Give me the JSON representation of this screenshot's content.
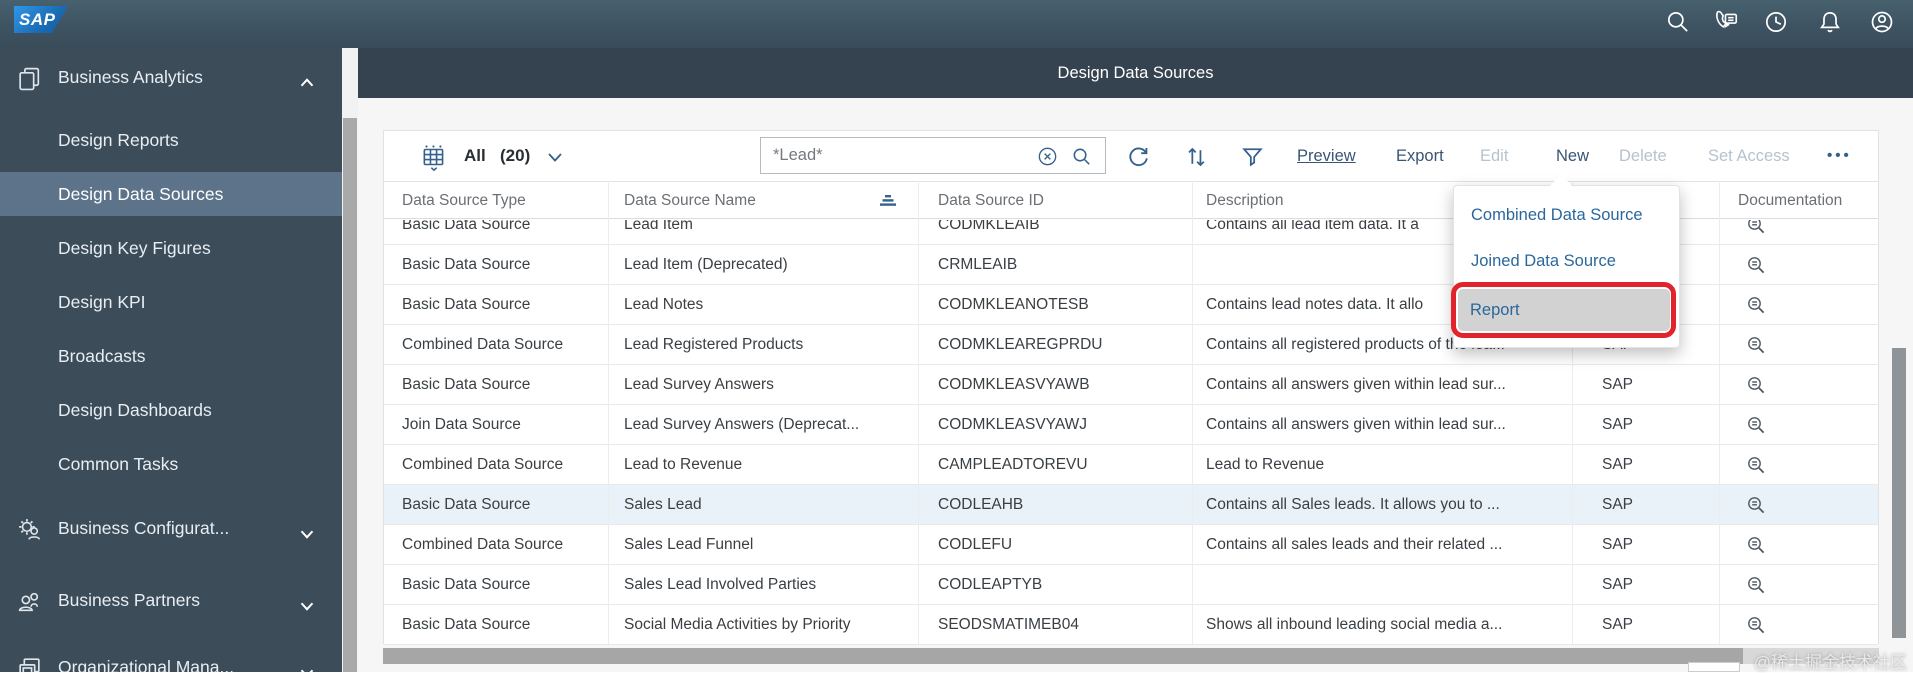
{
  "topbar": {
    "logo": "SAP",
    "icons": [
      "search-icon",
      "call-chat-icon",
      "history-icon",
      "notifications-icon",
      "profile-icon"
    ]
  },
  "sidebar": {
    "sections": [
      {
        "label": "Business Analytics",
        "icon": "copy-pages-icon",
        "expanded": true,
        "items": [
          {
            "label": "Design Reports"
          },
          {
            "label": "Design Data Sources",
            "selected": true
          },
          {
            "label": "Design Key Figures"
          },
          {
            "label": "Design KPI"
          },
          {
            "label": "Broadcasts"
          },
          {
            "label": "Design Dashboards"
          },
          {
            "label": "Common Tasks"
          }
        ]
      },
      {
        "label": "Business Configurat...",
        "icon": "gear-person-icon",
        "expanded": false
      },
      {
        "label": "Business Partners",
        "icon": "people-icon",
        "expanded": false
      },
      {
        "label": "Organizational Mana...",
        "icon": "org-windows-icon",
        "expanded": false
      }
    ]
  },
  "header": {
    "title": "Design Data Sources"
  },
  "toolbar": {
    "view_label": "All",
    "view_count": "(20)",
    "search_value": "*Lead*",
    "icons": [
      "table-view-icon",
      "chevron-down-icon",
      "clear-icon",
      "search-icon",
      "refresh-icon",
      "sort-icon",
      "filter-icon",
      "overflow-dots-icon"
    ],
    "actions": [
      {
        "label": "Preview",
        "enabled": true,
        "underlined": true
      },
      {
        "label": "Export",
        "enabled": true
      },
      {
        "label": "Edit",
        "enabled": false
      },
      {
        "label": "New",
        "enabled": true,
        "menu_open": true
      },
      {
        "label": "Delete",
        "enabled": false
      },
      {
        "label": "Set Access",
        "enabled": false
      }
    ],
    "overflow": "•••"
  },
  "table": {
    "columns": [
      "Data Source Type",
      "Data Source Name",
      "Data Source ID",
      "Description",
      "",
      "Documentation"
    ],
    "sort": {
      "column": "Data Source Name",
      "direction": "ascending"
    },
    "rows": [
      {
        "type": "Basic Data Source",
        "name": "Lead Item",
        "id": "CODMKLEAIB",
        "description": "Contains all lead item data. It a",
        "owner": ""
      },
      {
        "type": "Basic Data Source",
        "name": "Lead Item (Deprecated)",
        "id": "CRMLEAIB",
        "description": "",
        "owner": ""
      },
      {
        "type": "Basic Data Source",
        "name": "Lead Notes",
        "id": "CODMKLEANOTESB",
        "description": "Contains lead notes data. It allo",
        "owner": ""
      },
      {
        "type": "Combined Data Source",
        "name": "Lead Registered Products",
        "id": "CODMKLEAREGPRDU",
        "description": "Contains all registered products of the lea...",
        "owner": "SAP"
      },
      {
        "type": "Basic Data Source",
        "name": "Lead Survey Answers",
        "id": "CODMKLEASVYAWB",
        "description": "Contains all answers given within lead sur...",
        "owner": "SAP"
      },
      {
        "type": "Join Data Source",
        "name": "Lead Survey Answers (Deprecat...",
        "id": "CODMKLEASVYAWJ",
        "description": "Contains all answers given within lead sur...",
        "owner": "SAP"
      },
      {
        "type": "Combined Data Source",
        "name": "Lead to Revenue",
        "id": "CAMPLEADTOREVU",
        "description": "Lead to Revenue",
        "owner": "SAP"
      },
      {
        "type": "Basic Data Source",
        "name": "Sales Lead",
        "id": "CODLEAHB",
        "description": "Contains all Sales leads. It allows you to ...",
        "owner": "SAP",
        "highlighted": true
      },
      {
        "type": "Combined Data Source",
        "name": "Sales Lead Funnel",
        "id": "CODLEFU",
        "description": "Contains all sales leads and their related ...",
        "owner": "SAP"
      },
      {
        "type": "Basic Data Source",
        "name": "Sales Lead Involved Parties",
        "id": "CODLEAPTYB",
        "description": "",
        "owner": "SAP"
      },
      {
        "type": "Basic Data Source",
        "name": "Social Media Activities by Priority",
        "id": "SEODSMATIMEB04",
        "description": "Shows all inbound leading social media a...",
        "owner": "SAP"
      }
    ]
  },
  "menu": {
    "anchor": "New",
    "items": [
      "Combined Data Source",
      "Joined Data Source",
      "Report"
    ],
    "highlighted_item": "Report"
  },
  "watermark": "@稀土掘金技术社区",
  "colors": {
    "annotation_red": "#e1232b",
    "link_blue": "#2a679c",
    "icon_blue": "#35618c",
    "sidebar_bg": "#3d4c59",
    "sidebar_selected": "#5d7389",
    "header_bar": "#35424f",
    "selected_row": "#e9f2f8"
  }
}
